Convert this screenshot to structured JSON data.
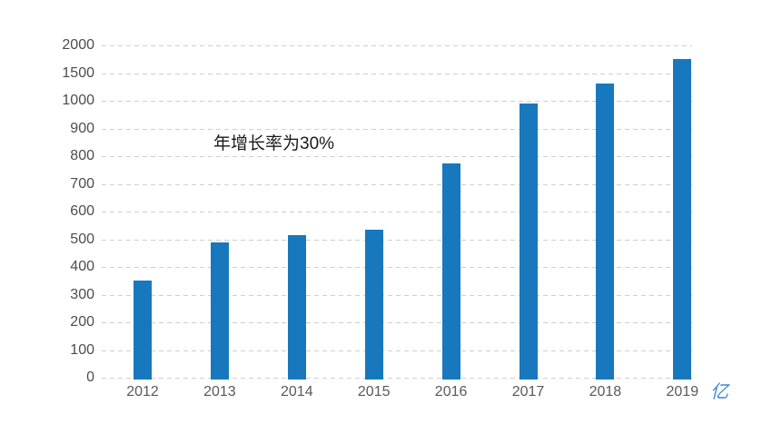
{
  "chart_data": {
    "type": "bar",
    "title": "",
    "categories": [
      "2012",
      "2013",
      "2014",
      "2015",
      "2016",
      "2017",
      "2018",
      "2019"
    ],
    "values": [
      350,
      490,
      515,
      535,
      775,
      990,
      1320,
      1750
    ],
    "series_name": "",
    "annotation": "年增长率为30%",
    "y_unit": "亿",
    "xlabel": "",
    "ylabel": "",
    "y_ticks": [
      0,
      100,
      200,
      300,
      400,
      500,
      600,
      700,
      800,
      900,
      1000,
      1500,
      2000
    ],
    "y_axis_note": "ticks evenly spaced on screen; scale is non-linear above 1000 (steps of 500)",
    "grid": "horizontal dashed lines, no solid axis lines, no legend",
    "legend_position": "none",
    "colors": {
      "bar": "#1878be",
      "gridline": "#cfcfcf",
      "tick_label": "#4d4d4d",
      "x_tick_label": "#595959",
      "annotation": "#1a1a1a",
      "unit_label": "#3b8ad6",
      "background": "#ffffff"
    }
  }
}
